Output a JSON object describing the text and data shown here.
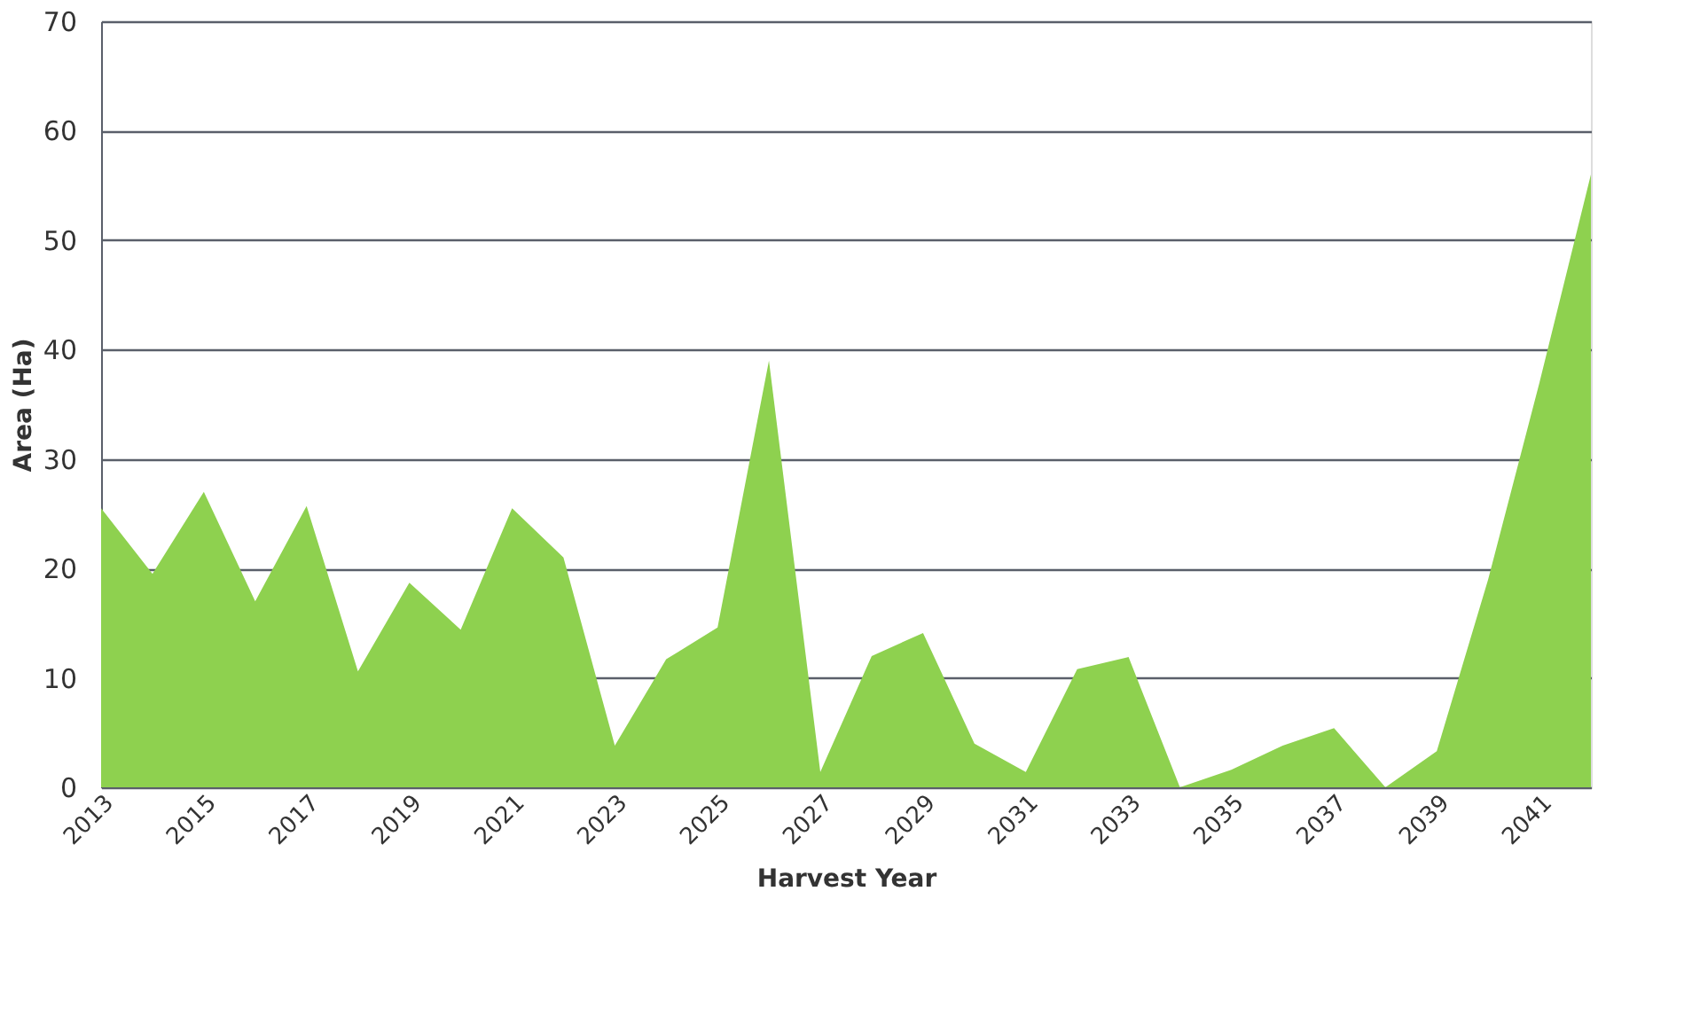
{
  "chart_data": {
    "type": "area",
    "xlabel": "Harvest Year",
    "ylabel": "Area (Ha)",
    "x": [
      2013,
      2014,
      2015,
      2016,
      2017,
      2018,
      2019,
      2020,
      2021,
      2022,
      2023,
      2024,
      2025,
      2026,
      2027,
      2028,
      2029,
      2030,
      2031,
      2032,
      2033,
      2034,
      2035,
      2036,
      2037,
      2038,
      2039,
      2040,
      2041,
      2042
    ],
    "series": [
      {
        "color": "#8ed14f",
        "values": [
          25.5,
          19.5,
          27,
          17,
          25.7,
          10.6,
          18.7,
          14.4,
          25.5,
          21,
          3.8,
          11.7,
          14.6,
          39,
          1.4,
          12,
          14.1,
          4,
          1.4,
          10.8,
          11.9,
          0,
          1.6,
          3.8,
          5.4,
          0,
          3.3,
          19,
          37,
          56
        ]
      }
    ],
    "xlim": [
      2013,
      2042
    ],
    "xticks": [
      2013,
      2015,
      2017,
      2019,
      2021,
      2023,
      2025,
      2027,
      2029,
      2031,
      2033,
      2035,
      2037,
      2039,
      2041
    ],
    "ylim": [
      0,
      70
    ],
    "yticks": [
      0,
      10,
      20,
      30,
      40,
      50,
      60,
      70
    ],
    "grid": "y"
  }
}
